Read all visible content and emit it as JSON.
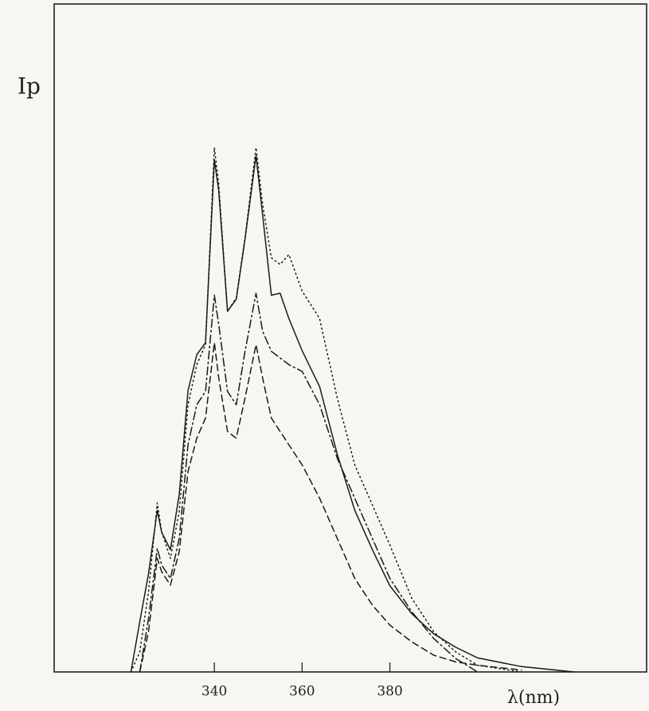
{
  "chart_data": {
    "type": "line",
    "y_label": "Ip",
    "x_label": "λ(nm)",
    "xlim": [
      303.5,
      438.5
    ],
    "ylim": [
      0,
      100
    ],
    "xticks": [
      340,
      360,
      380
    ],
    "x": [
      321,
      323,
      325,
      327,
      328,
      330,
      332,
      334,
      336,
      338,
      340,
      341,
      343,
      345,
      347,
      349.5,
      351,
      353,
      355,
      357,
      360,
      364,
      368,
      372,
      376,
      380,
      385,
      390,
      395,
      400,
      410,
      422
    ],
    "series": [
      {
        "color": "#1a1a1a",
        "dash": "solid",
        "values": [
          0,
          7.5,
          14.7,
          24.2,
          20.9,
          18.3,
          26.6,
          42.1,
          47.5,
          49.3,
          76.7,
          72,
          54,
          55.8,
          64.8,
          77.3,
          68.4,
          56.4,
          56.7,
          52.9,
          48.1,
          42.7,
          32.6,
          24.2,
          18.3,
          12.9,
          8.7,
          5.7,
          3.7,
          2.1,
          0.8,
          0
        ]
      },
      {
        "color": "#1a1a1a",
        "dash": "dotted",
        "values": [
          0,
          3,
          12,
          25.3,
          21,
          17,
          24,
          40,
          46,
          49,
          78.5,
          73,
          54,
          56,
          65,
          78.5,
          70,
          62,
          61,
          62.5,
          57,
          52.9,
          41,
          31,
          25,
          19,
          11,
          6,
          3,
          1,
          0,
          null
        ]
      },
      {
        "color": "#1a1a1a",
        "dash": "dashdot",
        "values": [
          null,
          0,
          8,
          18.5,
          16,
          14,
          20,
          34,
          40,
          42,
          56.4,
          52,
          42,
          40,
          48,
          56.7,
          51,
          48,
          47,
          46,
          45,
          40,
          32,
          26,
          20,
          14,
          9,
          5,
          2,
          0,
          null,
          null
        ]
      },
      {
        "color": "#1a1a1a",
        "dash": "dashed",
        "values": [
          null,
          0,
          6,
          17,
          15,
          13,
          18,
          30,
          35,
          38,
          49.3,
          44,
          36,
          35,
          41,
          49,
          44,
          38,
          36,
          34,
          31,
          26,
          20,
          14,
          10,
          7,
          4.5,
          2.5,
          1.5,
          1,
          0.3,
          null
        ]
      }
    ]
  }
}
